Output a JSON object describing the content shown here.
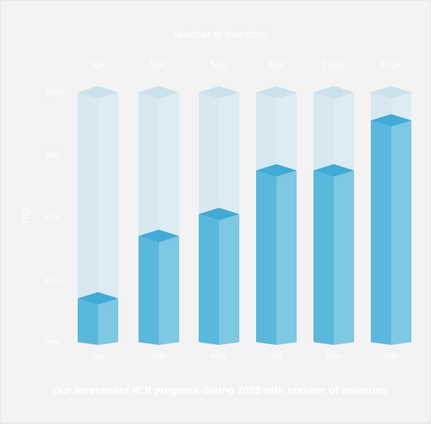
{
  "chart_data": {
    "type": "bar",
    "title": "Our investment ROI progress during 2023 with number of investors",
    "top_title": "Number of Investors",
    "ylabel": "ROI",
    "xlabel": "",
    "categories": [
      "Jan",
      "Mar",
      "May",
      "Jul",
      "Sep",
      "Nov"
    ],
    "investors": [
      "30K",
      "50K",
      "50K",
      "80K",
      "100K",
      "120K"
    ],
    "series": [
      {
        "values": [
          34,
          54,
          61,
          75,
          75,
          91
        ]
      }
    ],
    "ylim": [
      20,
      100
    ],
    "yticks": [
      "20%",
      "40%",
      "60%",
      "80%",
      "100%"
    ],
    "grid": false,
    "colors": {
      "bar_front": "#5ab8dc",
      "bar_side": "#7dc8e3",
      "bar_top": "#3fabd6",
      "track_front": "#d7e8f0",
      "track_side": "#ddebf2",
      "track_top": "#cbe1eb",
      "text": "#ffffff"
    }
  }
}
